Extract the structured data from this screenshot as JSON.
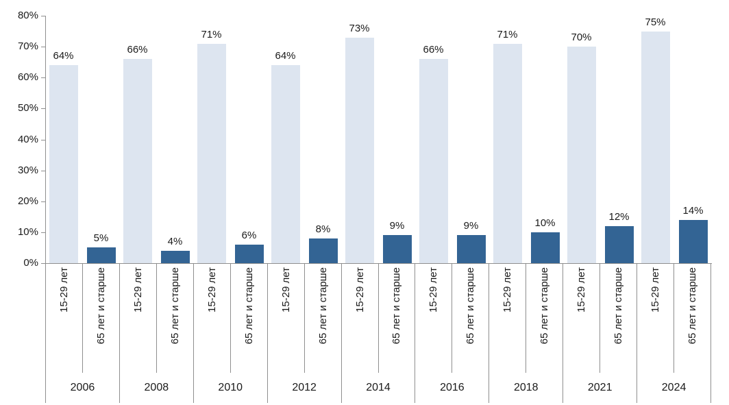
{
  "chart_data": {
    "type": "bar",
    "title": "",
    "categories": [
      "2006",
      "2008",
      "2010",
      "2012",
      "2014",
      "2016",
      "2018",
      "2021",
      "2024"
    ],
    "bar_category_labels": [
      "15-29 лет",
      "65 лет и старше"
    ],
    "series": [
      {
        "name": "15-29 лет",
        "color": "#dde5f0",
        "values": [
          64,
          66,
          71,
          64,
          73,
          66,
          71,
          70,
          75
        ]
      },
      {
        "name": "65 лет и старше",
        "color": "#336494",
        "values": [
          5,
          4,
          6,
          8,
          9,
          9,
          10,
          12,
          14
        ]
      }
    ],
    "data_labels": [
      [
        "64%",
        "66%",
        "71%",
        "64%",
        "73%",
        "66%",
        "71%",
        "70%",
        "75%"
      ],
      [
        "5%",
        "4%",
        "6%",
        "8%",
        "9%",
        "9%",
        "10%",
        "12%",
        "14%"
      ]
    ],
    "value_suffix": "%",
    "ylim": [
      0,
      80
    ],
    "ytick_step": 10,
    "ytick_labels": [
      "0%",
      "10%",
      "20%",
      "30%",
      "40%",
      "50%",
      "60%",
      "70%",
      "80%"
    ],
    "grid": false,
    "legend_position": "none",
    "axis_color": "#8e8e8e",
    "text_color": "#1a1a1a"
  }
}
